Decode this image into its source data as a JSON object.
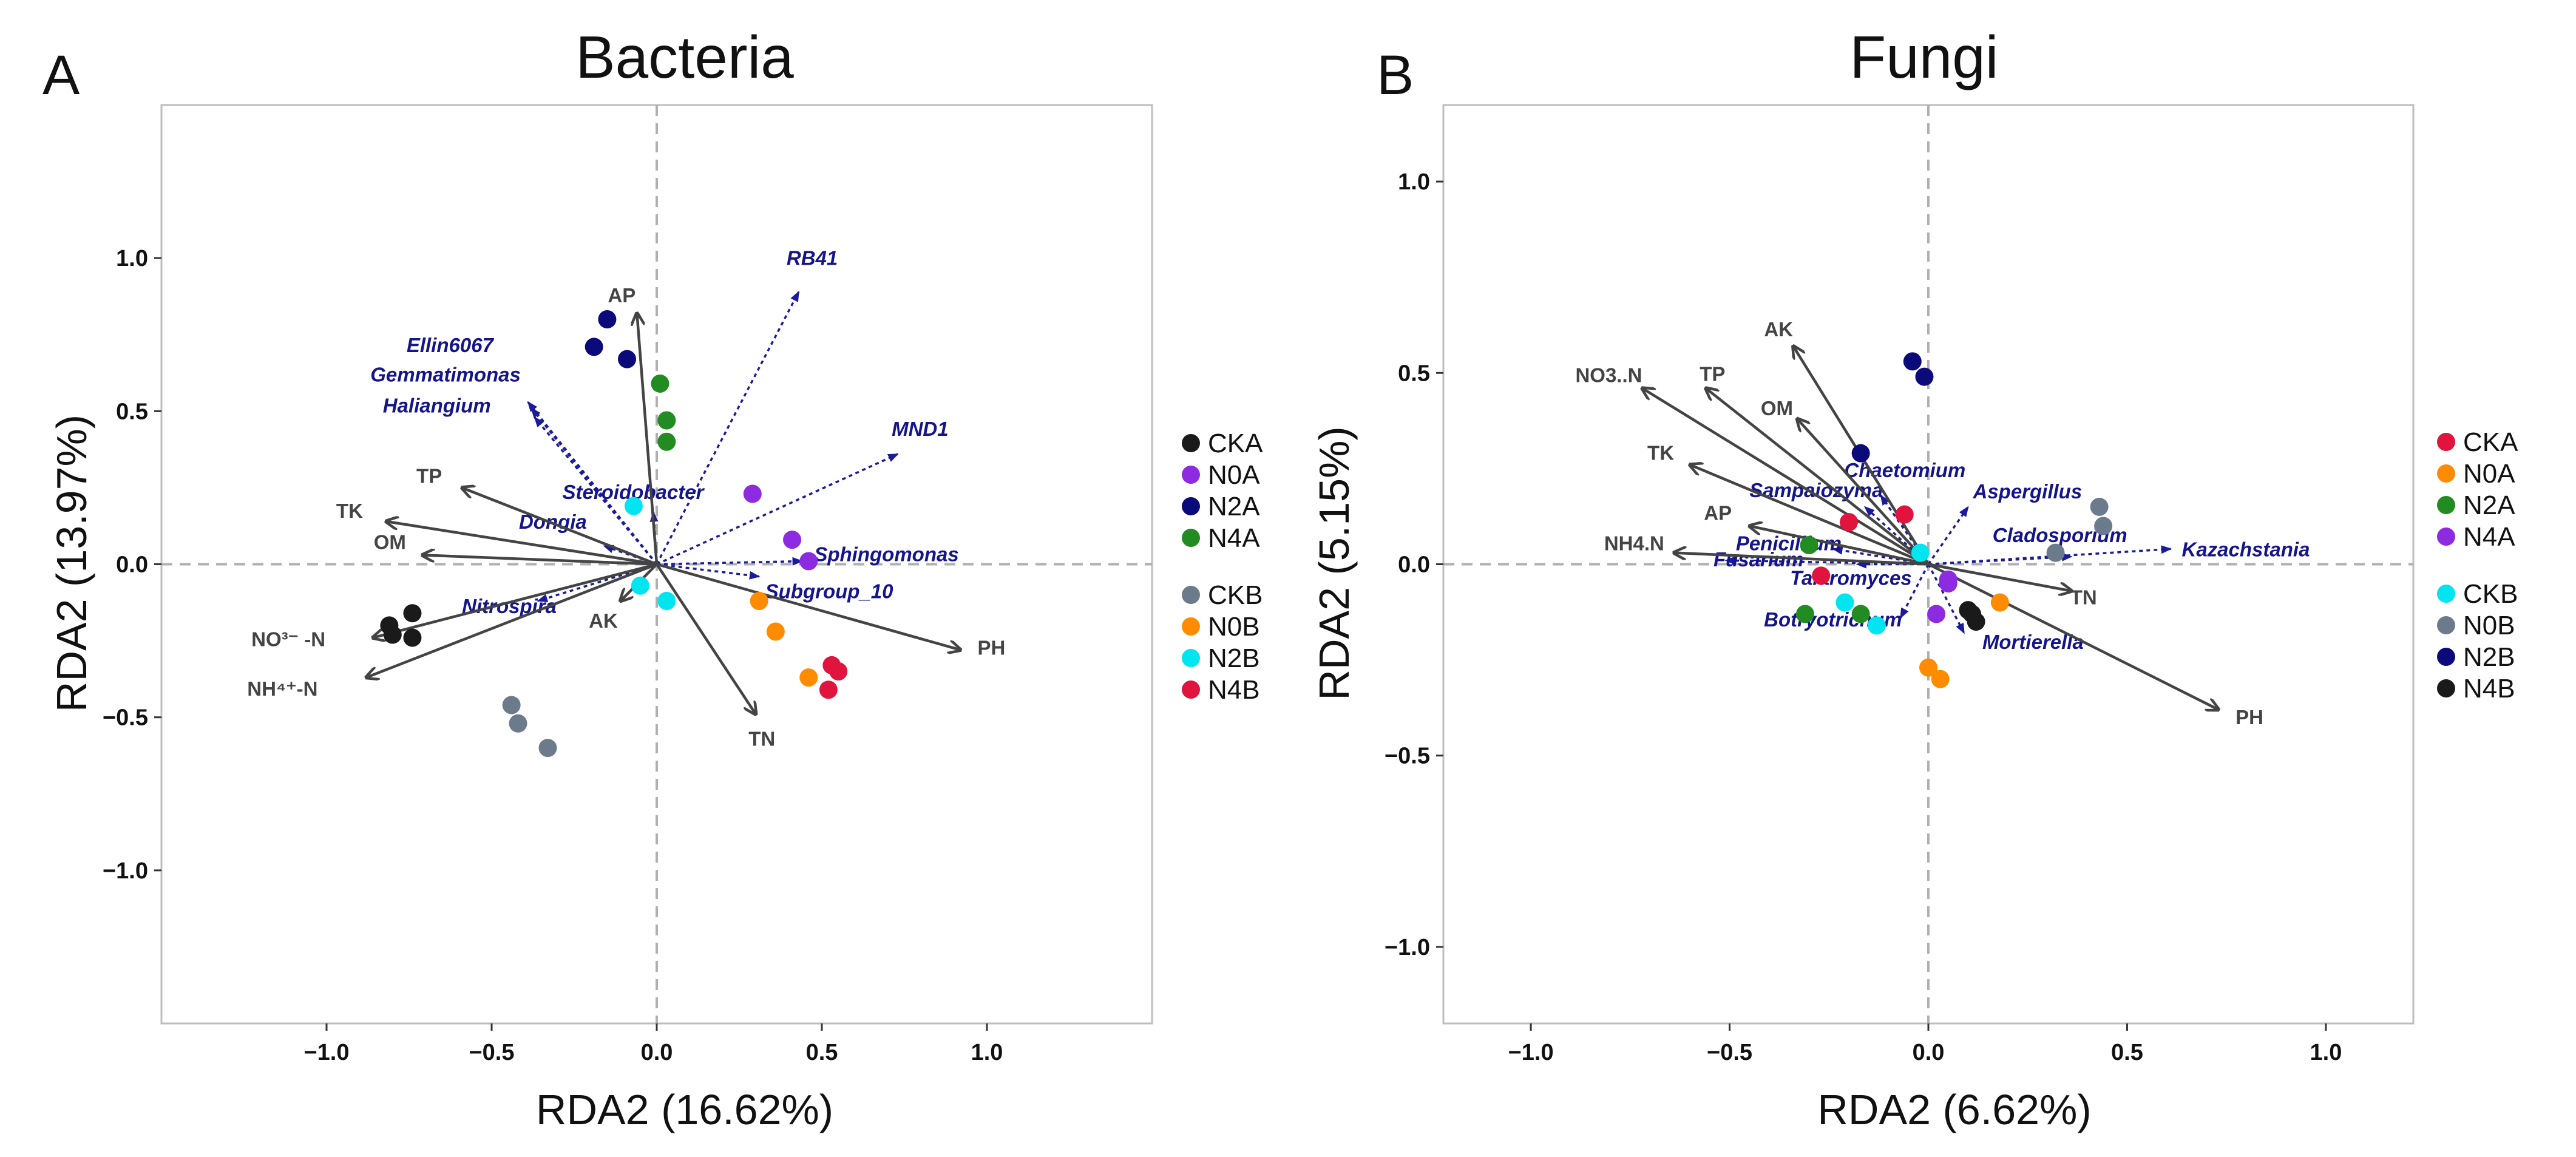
{
  "chart_data": [
    {
      "panel": "A",
      "type": "scatter",
      "title": "Bacteria",
      "xlabel": "RDA2 (16.62%)",
      "ylabel": "RDA2 (13.97%)",
      "xlim": [
        -1.5,
        1.5
      ],
      "ylim": [
        -1.5,
        1.5
      ],
      "xticks": [
        -1.0,
        -0.5,
        0.0,
        0.5,
        1.0
      ],
      "yticks": [
        -1.0,
        -0.5,
        0.0,
        0.5,
        1.0
      ],
      "xtick_labels": [
        "−1.0",
        "−0.5",
        "0.0",
        "0.5",
        "1.0"
      ],
      "ytick_labels": [
        "−1.0",
        "−0.5",
        "0.0",
        "0.5",
        "1.0"
      ],
      "legend_position": "right",
      "groups": [
        {
          "name": "CKA",
          "color": "#1a1a1a",
          "points": [
            [
              -0.81,
              -0.2
            ],
            [
              -0.74,
              -0.16
            ],
            [
              -0.74,
              -0.24
            ],
            [
              -0.8,
              -0.23
            ]
          ]
        },
        {
          "name": "N0A",
          "color": "#8c2be0",
          "points": [
            [
              0.29,
              0.23
            ],
            [
              0.41,
              0.08
            ],
            [
              0.46,
              0.01
            ]
          ]
        },
        {
          "name": "N2A",
          "color": "#0a0a7a",
          "points": [
            [
              -0.15,
              0.8
            ],
            [
              -0.19,
              0.71
            ],
            [
              -0.09,
              0.67
            ]
          ]
        },
        {
          "name": "N4A",
          "color": "#228b22",
          "points": [
            [
              0.01,
              0.59
            ],
            [
              0.03,
              0.47
            ],
            [
              0.03,
              0.4
            ]
          ]
        },
        {
          "name": "CKB",
          "color": "#6b7b8b",
          "points": [
            [
              -0.44,
              -0.46
            ],
            [
              -0.42,
              -0.52
            ],
            [
              -0.33,
              -0.6
            ]
          ]
        },
        {
          "name": "N0B",
          "color": "#ff8c00",
          "points": [
            [
              0.31,
              -0.12
            ],
            [
              0.36,
              -0.22
            ],
            [
              0.46,
              -0.37
            ]
          ]
        },
        {
          "name": "N2B",
          "color": "#00e5f0",
          "points": [
            [
              -0.07,
              0.19
            ],
            [
              -0.05,
              -0.07
            ],
            [
              0.03,
              -0.12
            ]
          ]
        },
        {
          "name": "N4B",
          "color": "#e0143c",
          "points": [
            [
              0.53,
              -0.33
            ],
            [
              0.55,
              -0.35
            ],
            [
              0.52,
              -0.41
            ]
          ]
        }
      ],
      "env_vectors": [
        {
          "label": "AP",
          "x": -0.06,
          "y": 0.82
        },
        {
          "label": "TP",
          "x": -0.59,
          "y": 0.25
        },
        {
          "label": "TK",
          "x": -0.82,
          "y": 0.14
        },
        {
          "label": "OM",
          "x": -0.71,
          "y": 0.03
        },
        {
          "label": "AK",
          "x": -0.11,
          "y": -0.12
        },
        {
          "label": "TN",
          "x": 0.3,
          "y": -0.49
        },
        {
          "label": "PH",
          "x": 0.92,
          "y": -0.28
        },
        {
          "label": "NO³⁻ -N",
          "x": -0.86,
          "y": -0.24
        },
        {
          "label": "NH⁴⁺-N",
          "x": -0.88,
          "y": -0.37
        }
      ],
      "taxa_vectors": [
        {
          "label": "RB41",
          "x": 0.43,
          "y": 0.89
        },
        {
          "label": "Ellin6067",
          "x": -0.39,
          "y": 0.53
        },
        {
          "label": "Gemmatimonas",
          "x": -0.38,
          "y": 0.51
        },
        {
          "label": "Haliangium",
          "x": -0.37,
          "y": 0.48
        },
        {
          "label": "MND1",
          "x": 0.73,
          "y": 0.36
        },
        {
          "label": "Steroidobacter",
          "x": -0.01,
          "y": 0.17
        },
        {
          "label": "Dongia",
          "x": -0.16,
          "y": 0.06
        },
        {
          "label": "Sphingomonas",
          "x": 0.44,
          "y": 0.01
        },
        {
          "label": "Subgroup_10",
          "x": 0.31,
          "y": -0.04
        },
        {
          "label": "Nitrospira",
          "x": -0.36,
          "y": -0.12
        }
      ]
    },
    {
      "panel": "B",
      "type": "scatter",
      "title": "Fungi",
      "xlabel": "RDA2 (6.62%)",
      "ylabel": "RDA2 (5.15%)",
      "xlim": [
        -1.22,
        1.22
      ],
      "ylim": [
        -1.2,
        1.2
      ],
      "xticks": [
        -1.0,
        -0.5,
        0.0,
        0.5,
        1.0
      ],
      "yticks": [
        -1.0,
        -0.5,
        0.0,
        0.5,
        1.0
      ],
      "xtick_labels": [
        "−1.0",
        "−0.5",
        "0.0",
        "0.5",
        "1.0"
      ],
      "ytick_labels": [
        "−1.0",
        "−0.5",
        "0.0",
        "0.5",
        "1.0"
      ],
      "legend_position": "right",
      "groups": [
        {
          "name": "CKA",
          "color": "#e0143c",
          "points": [
            [
              -0.06,
              0.13
            ],
            [
              -0.2,
              0.11
            ],
            [
              -0.27,
              -0.03
            ]
          ]
        },
        {
          "name": "N0A",
          "color": "#ff8c00",
          "points": [
            [
              0.18,
              -0.1
            ],
            [
              0.0,
              -0.27
            ],
            [
              0.03,
              -0.3
            ]
          ]
        },
        {
          "name": "N2A",
          "color": "#228b22",
          "points": [
            [
              -0.31,
              -0.13
            ],
            [
              -0.17,
              -0.13
            ],
            [
              -0.3,
              0.05
            ]
          ]
        },
        {
          "name": "N4A",
          "color": "#8c2be0",
          "points": [
            [
              0.05,
              -0.04
            ],
            [
              0.05,
              -0.05
            ],
            [
              0.02,
              -0.13
            ]
          ]
        },
        {
          "name": "CKB",
          "color": "#00e5f0",
          "points": [
            [
              -0.21,
              -0.1
            ],
            [
              -0.02,
              0.03
            ],
            [
              -0.13,
              -0.16
            ]
          ]
        },
        {
          "name": "N0B",
          "color": "#6b7b8b",
          "points": [
            [
              0.43,
              0.15
            ],
            [
              0.44,
              0.1
            ],
            [
              0.32,
              0.03
            ]
          ]
        },
        {
          "name": "N2B",
          "color": "#0a0a7a",
          "points": [
            [
              -0.04,
              0.53
            ],
            [
              -0.01,
              0.49
            ],
            [
              -0.17,
              0.29
            ]
          ]
        },
        {
          "name": "N4B",
          "color": "#1a1a1a",
          "points": [
            [
              0.1,
              -0.12
            ],
            [
              0.12,
              -0.15
            ],
            [
              0.11,
              -0.13
            ]
          ]
        }
      ],
      "env_vectors": [
        {
          "label": "AK",
          "x": -0.34,
          "y": 0.57
        },
        {
          "label": "NO3..N",
          "x": -0.72,
          "y": 0.46
        },
        {
          "label": "TP",
          "x": -0.56,
          "y": 0.46
        },
        {
          "label": "OM",
          "x": -0.33,
          "y": 0.38
        },
        {
          "label": "TK",
          "x": -0.6,
          "y": 0.26
        },
        {
          "label": "AP",
          "x": -0.45,
          "y": 0.1
        },
        {
          "label": "NH4.N",
          "x": -0.64,
          "y": 0.03
        },
        {
          "label": "TN",
          "x": 0.36,
          "y": -0.07
        },
        {
          "label": "PH",
          "x": 0.73,
          "y": -0.38
        }
      ],
      "taxa_vectors": [
        {
          "label": "Chaetomium",
          "x": -0.12,
          "y": 0.18
        },
        {
          "label": "Sampaiozyma",
          "x": -0.16,
          "y": 0.15
        },
        {
          "label": "Aspergillus",
          "x": 0.1,
          "y": 0.15
        },
        {
          "label": "Cladosporium",
          "x": 0.36,
          "y": 0.02
        },
        {
          "label": "Kazachstania",
          "x": 0.61,
          "y": 0.04
        },
        {
          "label": "Penicillium",
          "x": -0.24,
          "y": 0.04
        },
        {
          "label": "Fusarium",
          "x": -0.51,
          "y": 0.01
        },
        {
          "label": "Talaromyces",
          "x": -0.18,
          "y": 0.0
        },
        {
          "label": "Botryotrichum",
          "x": -0.07,
          "y": -0.14
        },
        {
          "label": "Mortierella",
          "x": 0.09,
          "y": -0.18
        }
      ]
    }
  ],
  "panel_letters": [
    "A",
    "B"
  ]
}
